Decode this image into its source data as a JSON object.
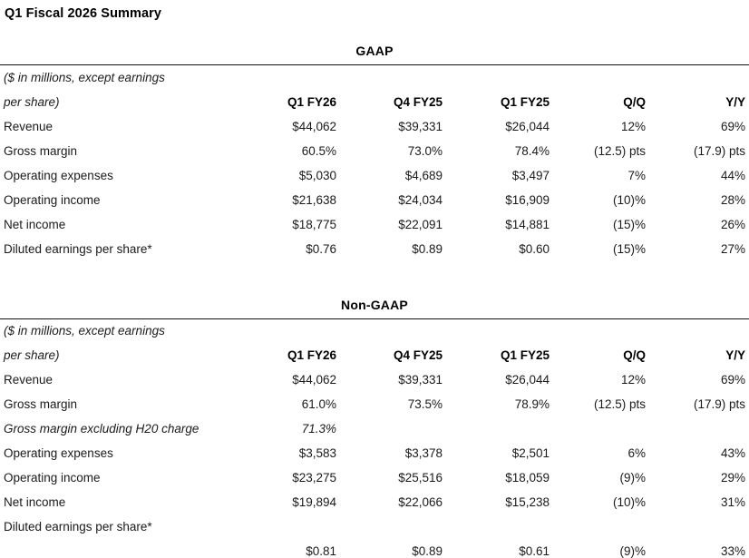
{
  "page": {
    "title": "Q1 Fiscal 2026 Summary"
  },
  "sections": [
    {
      "title": "GAAP",
      "unit_line1": "($ in millions, except earnings",
      "unit_line2": "per share)",
      "columns": [
        "Q1 FY26",
        "Q4 FY25",
        "Q1 FY25",
        "Q/Q",
        "Y/Y"
      ],
      "rows": [
        {
          "label": "Revenue",
          "values": [
            "$44,062",
            "$39,331",
            "$26,044",
            "12%",
            "69%"
          ]
        },
        {
          "label": "Gross margin",
          "values": [
            "60.5%",
            "73.0%",
            "78.4%",
            "(12.5) pts",
            "(17.9) pts"
          ]
        },
        {
          "label": "Operating expenses",
          "values": [
            "$5,030",
            "$4,689",
            "$3,497",
            "7%",
            "44%"
          ]
        },
        {
          "label": "Operating income",
          "values": [
            "$21,638",
            "$24,034",
            "$16,909",
            "(10)%",
            "28%"
          ]
        },
        {
          "label": "Net income",
          "values": [
            "$18,775",
            "$22,091",
            "$14,881",
            "(15)%",
            "26%"
          ]
        },
        {
          "label": "Diluted earnings per share*",
          "values": [
            "$0.76",
            "$0.89",
            "$0.60",
            "(15)%",
            "27%"
          ]
        }
      ]
    },
    {
      "title": "Non-GAAP",
      "unit_line1": "($ in millions, except earnings",
      "unit_line2": "per share)",
      "columns": [
        "Q1 FY26",
        "Q4 FY25",
        "Q1 FY25",
        "Q/Q",
        "Y/Y"
      ],
      "rows": [
        {
          "label": "Revenue",
          "values": [
            "$44,062",
            "$39,331",
            "$26,044",
            "12%",
            "69%"
          ]
        },
        {
          "label": "Gross margin",
          "values": [
            "61.0%",
            "73.5%",
            "78.9%",
            "(12.5) pts",
            "(17.9) pts"
          ]
        },
        {
          "label": "Gross margin excluding H20 charge",
          "values": [
            "71.3%",
            "",
            "",
            "",
            ""
          ]
        },
        {
          "label": "Operating expenses",
          "values": [
            "$3,583",
            "$3,378",
            "$2,501",
            "6%",
            "43%"
          ]
        },
        {
          "label": "Operating income",
          "values": [
            "$23,275",
            "$25,516",
            "$18,059",
            "(9)%",
            "29%"
          ]
        },
        {
          "label": "Net income",
          "values": [
            "$19,894",
            "$22,066",
            "$15,238",
            "(10)%",
            "31%"
          ]
        },
        {
          "label": "Diluted earnings per share*",
          "values": [
            "",
            "",
            "",
            "",
            ""
          ]
        },
        {
          "label": "",
          "values": [
            "$0.81",
            "$0.89",
            "$0.61",
            "(9)%",
            "33%"
          ]
        }
      ]
    }
  ]
}
